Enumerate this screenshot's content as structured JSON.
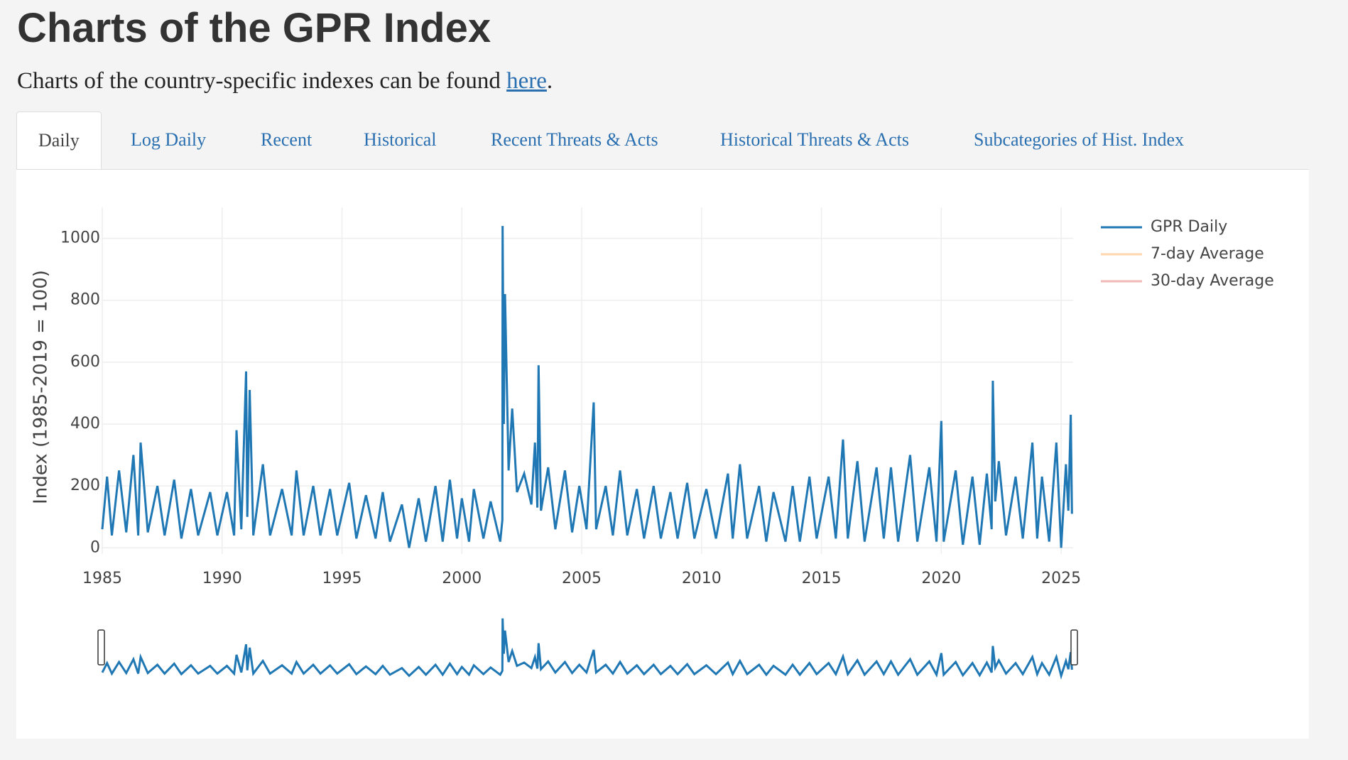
{
  "header": {
    "title": "Charts of the GPR Index",
    "intro": "Charts of the country-specific indexes can be found",
    "link": "here",
    "after_link": "."
  },
  "tabs": {
    "items": [
      "Daily",
      "Log Daily",
      "Recent",
      "Historical",
      "Recent Threats & Acts",
      "Historical Threats & Acts",
      "Subcategories of Hist. Index"
    ],
    "active": 0
  },
  "chart_data": {
    "type": "line",
    "y_label": "Index (1985-2019 = 100)",
    "grid": true,
    "range_slider": true,
    "xlim": [
      1985,
      2025.5
    ],
    "xticks": [
      1985,
      1990,
      1995,
      2000,
      2005,
      2010,
      2015,
      2020,
      2025
    ],
    "ylim": [
      -20,
      1100
    ],
    "yticks": [
      0,
      200,
      400,
      600,
      800,
      1000
    ],
    "x": [
      1985.0,
      1985.2,
      1985.4,
      1985.7,
      1986.0,
      1986.3,
      1986.5,
      1986.6,
      1986.9,
      1987.3,
      1987.6,
      1988.0,
      1988.3,
      1988.7,
      1989.0,
      1989.5,
      1989.8,
      1990.2,
      1990.5,
      1990.6,
      1990.8,
      1991.0,
      1991.05,
      1991.15,
      1991.3,
      1991.7,
      1992.0,
      1992.5,
      1992.9,
      1993.1,
      1993.4,
      1993.8,
      1994.1,
      1994.5,
      1994.8,
      1995.3,
      1995.6,
      1996.0,
      1996.4,
      1996.7,
      1997.0,
      1997.5,
      1997.8,
      1998.2,
      1998.5,
      1998.9,
      1999.2,
      1999.5,
      1999.8,
      2000.0,
      2000.3,
      2000.5,
      2000.9,
      2001.2,
      2001.6,
      2001.69,
      2001.7,
      2001.75,
      2001.8,
      2001.85,
      2001.95,
      2002.1,
      2002.3,
      2002.6,
      2002.9,
      2003.05,
      2003.15,
      2003.2,
      2003.3,
      2003.6,
      2003.9,
      2004.3,
      2004.6,
      2004.9,
      2005.2,
      2005.5,
      2005.6,
      2006.0,
      2006.3,
      2006.6,
      2006.9,
      2007.3,
      2007.6,
      2008.0,
      2008.3,
      2008.7,
      2009.0,
      2009.4,
      2009.7,
      2010.2,
      2010.6,
      2011.1,
      2011.3,
      2011.6,
      2011.9,
      2012.4,
      2012.7,
      2013.0,
      2013.5,
      2013.8,
      2014.1,
      2014.5,
      2014.8,
      2015.3,
      2015.6,
      2015.9,
      2016.1,
      2016.5,
      2016.8,
      2017.3,
      2017.6,
      2017.9,
      2018.2,
      2018.7,
      2019.0,
      2019.5,
      2019.8,
      2020.0,
      2020.1,
      2020.6,
      2020.9,
      2021.3,
      2021.6,
      2021.9,
      2022.1,
      2022.15,
      2022.25,
      2022.4,
      2022.7,
      2023.1,
      2023.4,
      2023.8,
      2024.0,
      2024.2,
      2024.5,
      2024.8,
      2025.0,
      2025.2,
      2025.3,
      2025.4,
      2025.45
    ],
    "series": [
      {
        "name": "GPR Daily",
        "color": "#1f77b4",
        "values": [
          60,
          230,
          40,
          250,
          50,
          300,
          40,
          340,
          50,
          200,
          40,
          220,
          30,
          190,
          40,
          180,
          40,
          180,
          40,
          380,
          60,
          570,
          100,
          510,
          40,
          270,
          40,
          190,
          40,
          250,
          40,
          200,
          40,
          190,
          40,
          210,
          30,
          170,
          30,
          180,
          20,
          140,
          0,
          160,
          20,
          200,
          20,
          220,
          30,
          160,
          20,
          190,
          30,
          150,
          20,
          90,
          1040,
          400,
          820,
          630,
          250,
          450,
          180,
          240,
          140,
          340,
          130,
          590,
          120,
          260,
          60,
          250,
          50,
          200,
          60,
          470,
          60,
          200,
          40,
          250,
          40,
          190,
          30,
          200,
          30,
          180,
          30,
          210,
          30,
          190,
          30,
          240,
          30,
          270,
          30,
          200,
          20,
          180,
          20,
          200,
          20,
          230,
          30,
          230,
          30,
          350,
          30,
          280,
          20,
          260,
          30,
          260,
          20,
          300,
          20,
          260,
          20,
          410,
          20,
          250,
          10,
          230,
          10,
          240,
          60,
          540,
          150,
          280,
          40,
          230,
          30,
          340,
          30,
          230,
          20,
          340,
          0,
          270,
          120,
          430,
          110
        ]
      },
      {
        "name": "7-day Average",
        "color": "#ffbb78",
        "visible": false
      },
      {
        "name": "30-day Average",
        "color": "#e88a8a",
        "visible": false
      }
    ]
  }
}
